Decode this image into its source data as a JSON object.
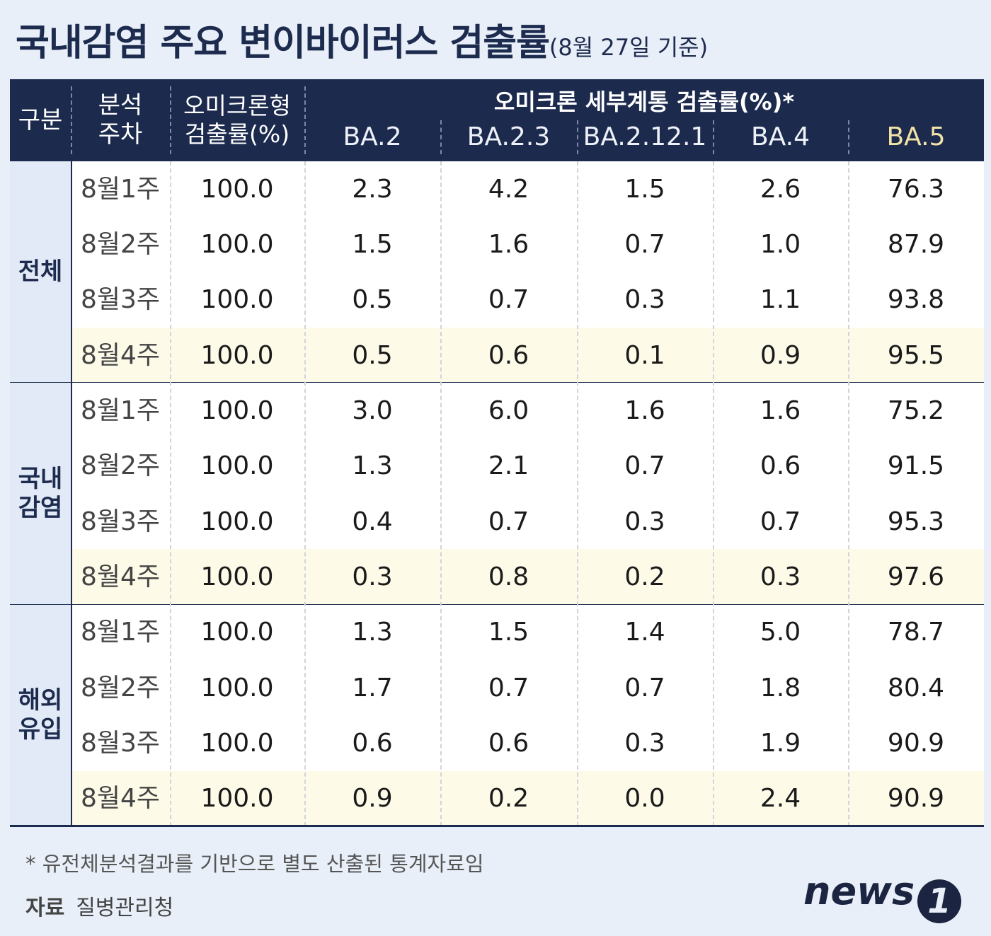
{
  "header": {
    "title": "국내감염 주요 변이바이러스 검출률",
    "subtitle": "(8월 27일 기준)"
  },
  "table": {
    "columns": {
      "group": "구분",
      "week": [
        "분석",
        "주차"
      ],
      "omicron": [
        "오미크론형",
        "검출률(%)"
      ],
      "sublineage": "오미크론 세부계통 검출률(%)*",
      "variants": [
        "BA.2",
        "BA.2.3",
        "BA.2.12.1",
        "BA.4",
        "BA.5"
      ]
    },
    "groups": [
      {
        "label": [
          "전체"
        ],
        "rows": [
          [
            "8월1주",
            "100.0",
            "2.3",
            "4.2",
            "1.5",
            "2.6",
            "76.3"
          ],
          [
            "8월2주",
            "100.0",
            "1.5",
            "1.6",
            "0.7",
            "1.0",
            "87.9"
          ],
          [
            "8월3주",
            "100.0",
            "0.5",
            "0.7",
            "0.3",
            "1.1",
            "93.8"
          ],
          [
            "8월4주",
            "100.0",
            "0.5",
            "0.6",
            "0.1",
            "0.9",
            "95.5"
          ]
        ]
      },
      {
        "label": [
          "국내",
          "감염"
        ],
        "rows": [
          [
            "8월1주",
            "100.0",
            "3.0",
            "6.0",
            "1.6",
            "1.6",
            "75.2"
          ],
          [
            "8월2주",
            "100.0",
            "1.3",
            "2.1",
            "0.7",
            "0.6",
            "91.5"
          ],
          [
            "8월3주",
            "100.0",
            "0.4",
            "0.7",
            "0.3",
            "0.7",
            "95.3"
          ],
          [
            "8월4주",
            "100.0",
            "0.3",
            "0.8",
            "0.2",
            "0.3",
            "97.6"
          ]
        ]
      },
      {
        "label": [
          "해외",
          "유입"
        ],
        "rows": [
          [
            "8월1주",
            "100.0",
            "1.3",
            "1.5",
            "1.4",
            "5.0",
            "78.7"
          ],
          [
            "8월2주",
            "100.0",
            "1.7",
            "0.7",
            "0.7",
            "1.8",
            "80.4"
          ],
          [
            "8월3주",
            "100.0",
            "0.6",
            "0.6",
            "0.3",
            "1.9",
            "90.9"
          ],
          [
            "8월4주",
            "100.0",
            "0.9",
            "0.2",
            "0.0",
            "2.4",
            "90.9"
          ]
        ]
      }
    ]
  },
  "footnote": "* 유전체분석결과를 기반으로 별도 산출된 통계자료임",
  "source": {
    "label": "자료",
    "name": "질병관리청"
  },
  "logo": {
    "text": "news",
    "mark": "1"
  }
}
